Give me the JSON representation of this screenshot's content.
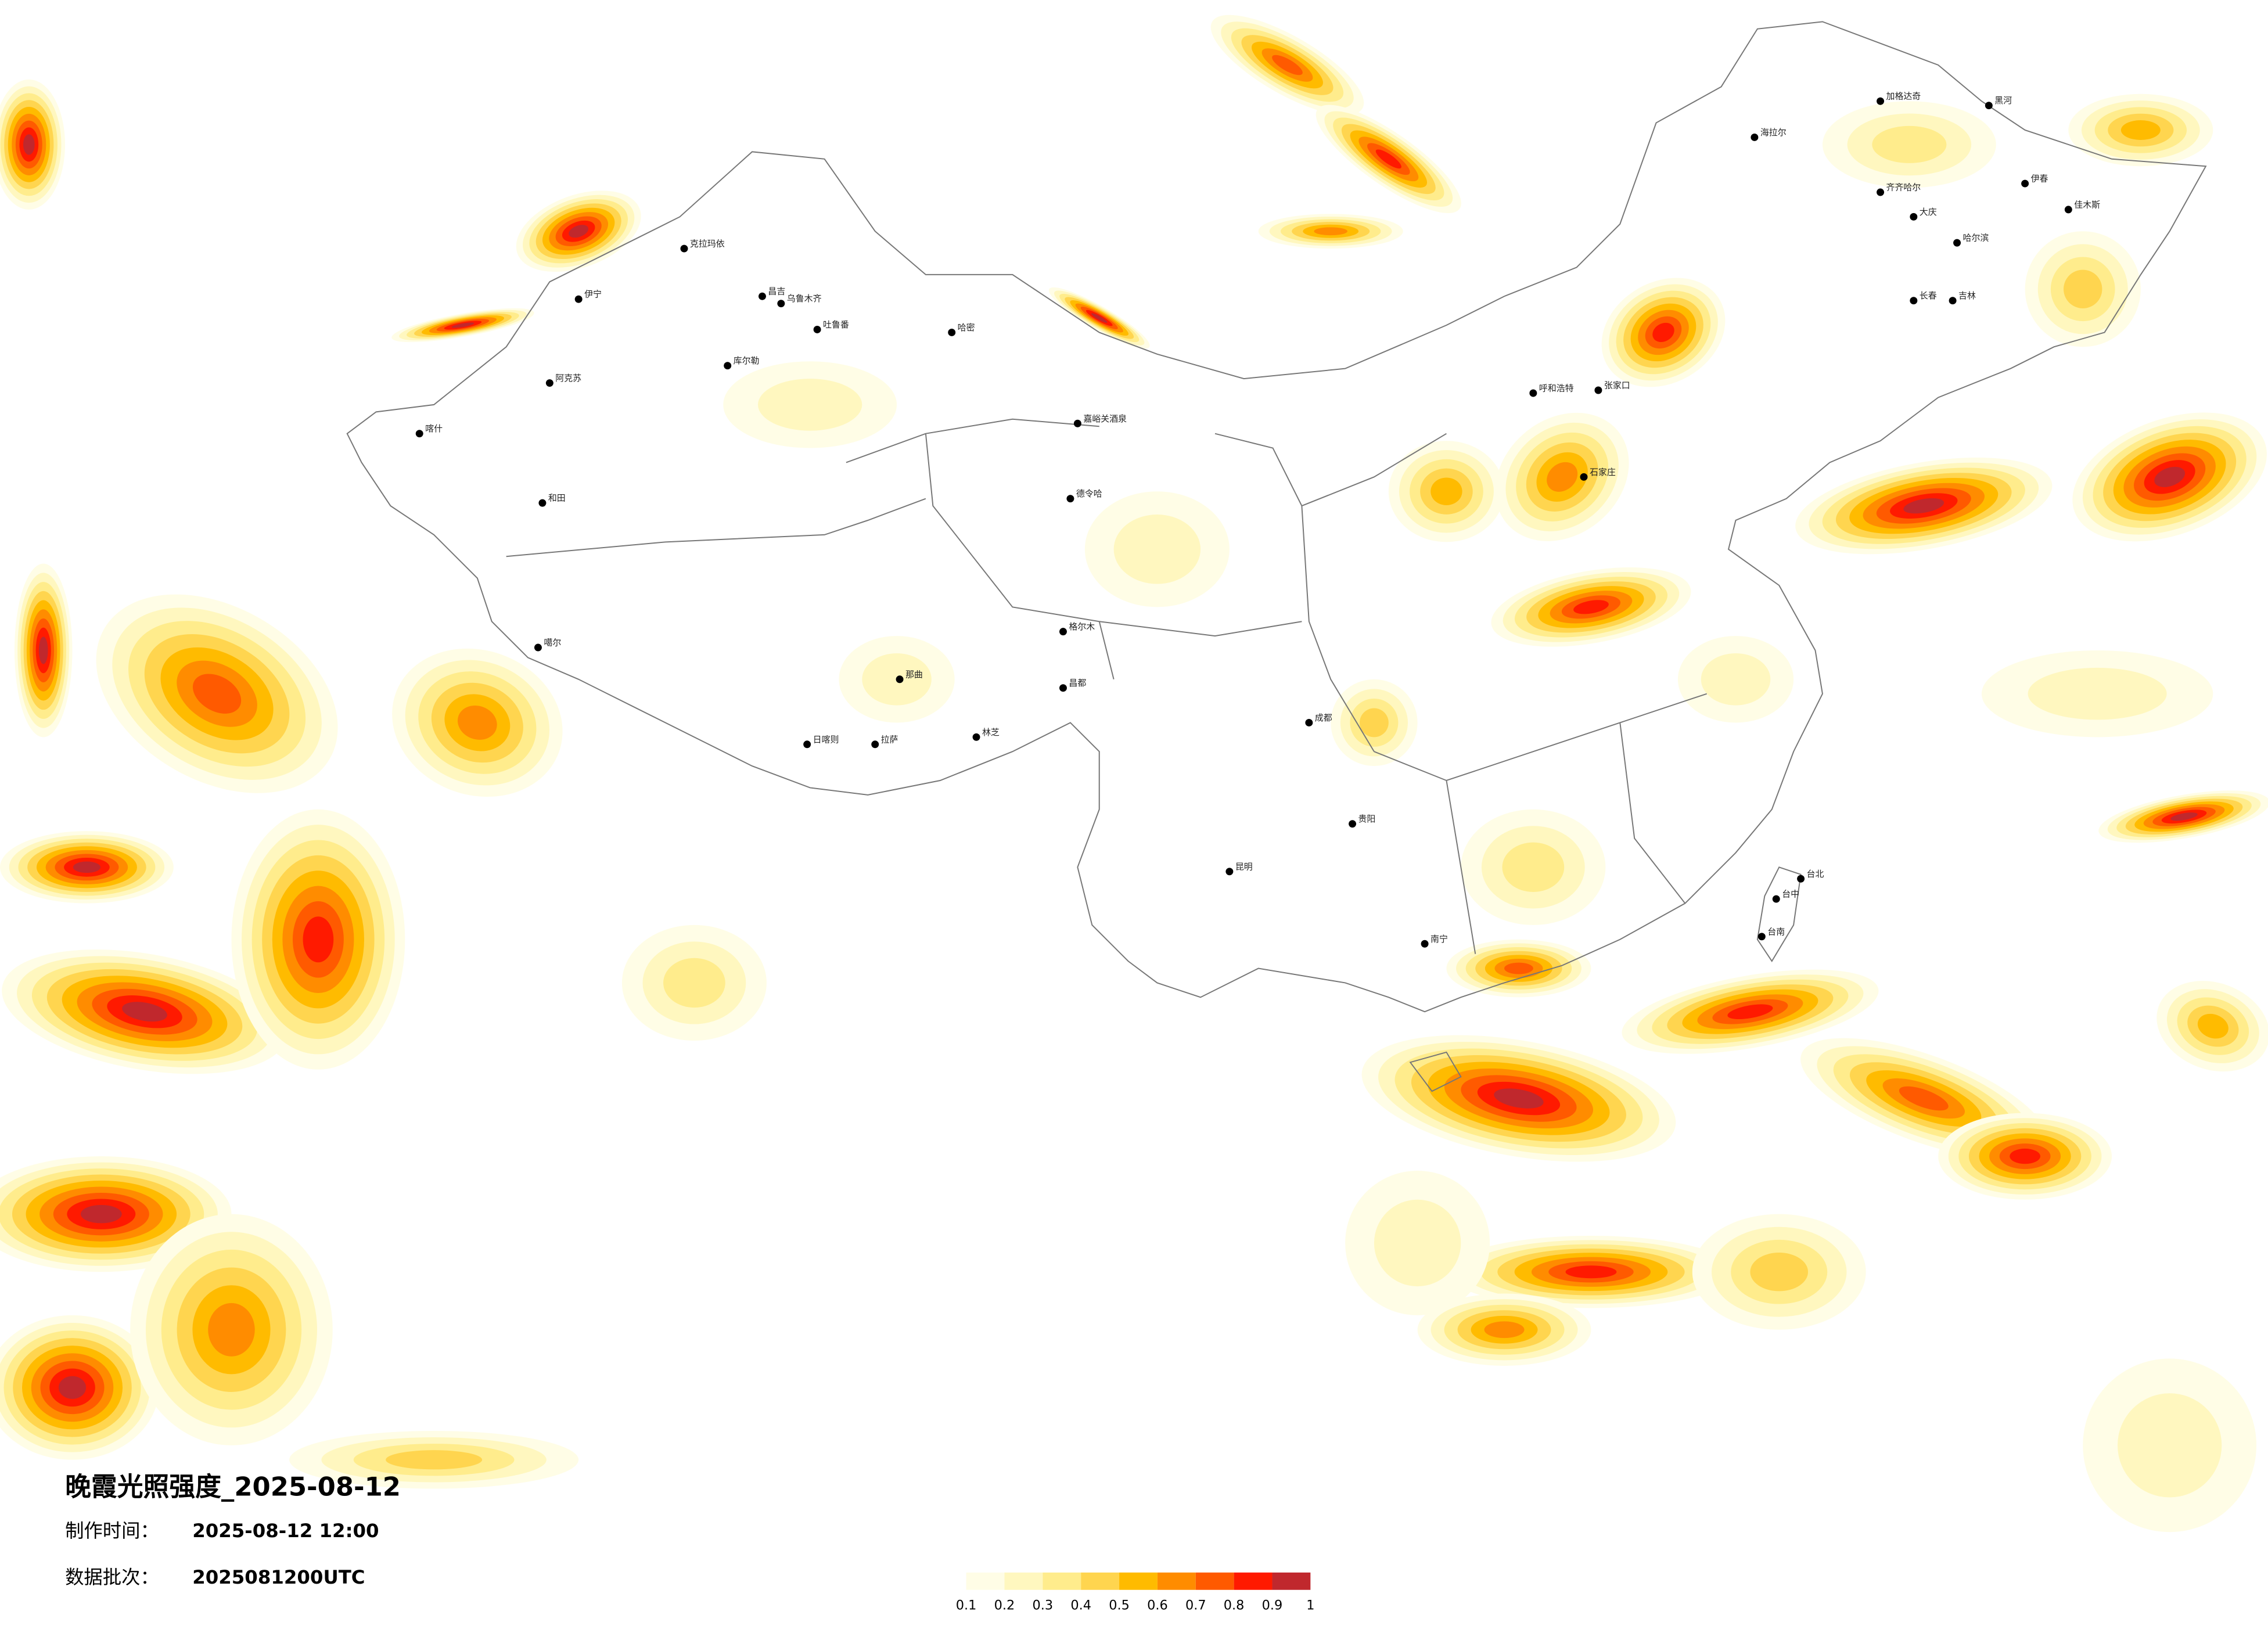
{
  "title": "晚霞光照强度_2025-08-12",
  "made_label": "制作时间：",
  "made_time": "2025-08-12 12:00",
  "batch_label": "数据批次：",
  "batch": "2025081200UTC",
  "colorbar": {
    "ticks": [
      0.1,
      0.2,
      0.3,
      0.4,
      0.5,
      0.6,
      0.7,
      0.8,
      0.9,
      1
    ],
    "colors": [
      "#fffde6",
      "#fff7bf",
      "#ffec8c",
      "#ffd54f",
      "#ffbb00",
      "#ff8c00",
      "#ff5a00",
      "#ff1a00",
      "#c0282d"
    ]
  },
  "cities": [
    "海拉尔",
    "加格达奇",
    "黑河",
    "齐齐哈尔",
    "大庆",
    "哈尔滨",
    "伊春",
    "佳木斯",
    "长春",
    "吉林",
    "呼和浩特",
    "张家口",
    "石家庄",
    "克拉玛依",
    "伊宁",
    "昌吉",
    "乌鲁木齐",
    "吐鲁番",
    "哈密",
    "库尔勒",
    "阿克苏",
    "喀什",
    "和田",
    "嘉峪关酒泉",
    "德令哈",
    "格尔木",
    "噶尔",
    "那曲",
    "拉萨",
    "日喀则",
    "林芝",
    "昌都",
    "成都",
    "昆明",
    "贵阳",
    "南宁",
    "台北",
    "台中",
    "台南"
  ]
}
